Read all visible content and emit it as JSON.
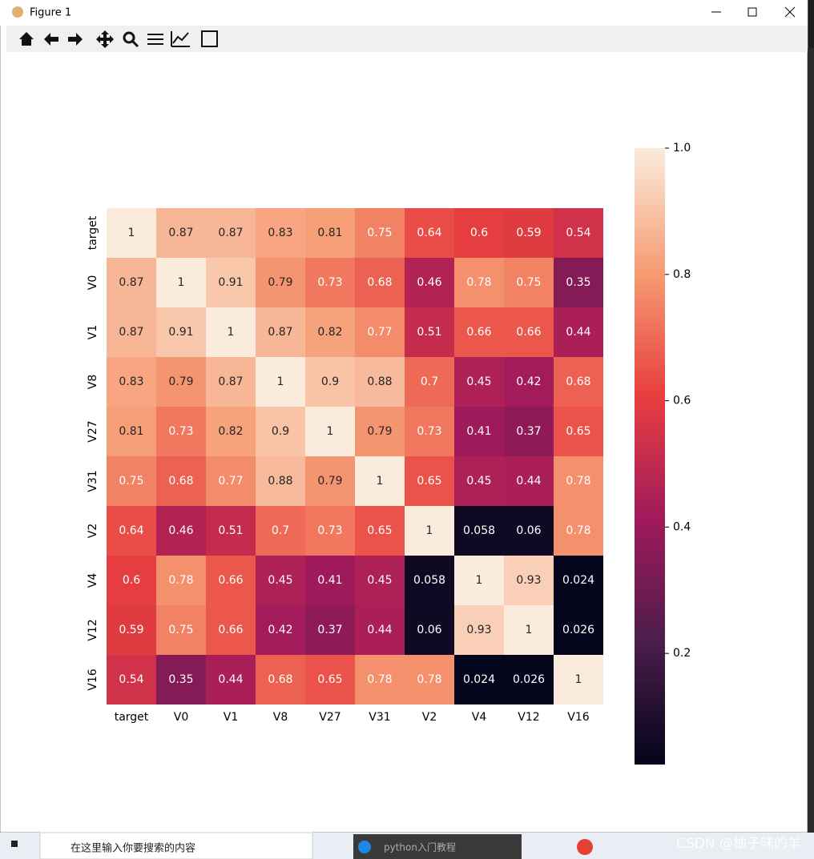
{
  "window": {
    "title": "Figure 1"
  },
  "chart_data": {
    "type": "heatmap",
    "x_categories": [
      "target",
      "V0",
      "V1",
      "V8",
      "V27",
      "V31",
      "V2",
      "V4",
      "V12",
      "V16"
    ],
    "y_categories": [
      "target",
      "V0",
      "V1",
      "V8",
      "V27",
      "V31",
      "V2",
      "V4",
      "V12",
      "V16"
    ],
    "values": [
      [
        1,
        0.87,
        0.87,
        0.83,
        0.81,
        0.75,
        0.64,
        0.6,
        0.59,
        0.54
      ],
      [
        0.87,
        1,
        0.91,
        0.79,
        0.73,
        0.68,
        0.46,
        0.78,
        0.75,
        0.35
      ],
      [
        0.87,
        0.91,
        1,
        0.87,
        0.82,
        0.77,
        0.51,
        0.66,
        0.66,
        0.44
      ],
      [
        0.83,
        0.79,
        0.87,
        1,
        0.9,
        0.88,
        0.7,
        0.45,
        0.42,
        0.68
      ],
      [
        0.81,
        0.73,
        0.82,
        0.9,
        1,
        0.79,
        0.73,
        0.41,
        0.37,
        0.65
      ],
      [
        0.75,
        0.68,
        0.77,
        0.88,
        0.79,
        1,
        0.65,
        0.45,
        0.44,
        0.78
      ],
      [
        0.64,
        0.46,
        0.51,
        0.7,
        0.73,
        0.65,
        1,
        0.058,
        0.06,
        0.78
      ],
      [
        0.6,
        0.78,
        0.66,
        0.45,
        0.41,
        0.45,
        0.058,
        1,
        0.93,
        0.024
      ],
      [
        0.59,
        0.75,
        0.66,
        0.42,
        0.37,
        0.44,
        0.06,
        0.93,
        1,
        0.026
      ],
      [
        0.54,
        0.35,
        0.44,
        0.68,
        0.65,
        0.78,
        0.78,
        0.024,
        0.026,
        1
      ]
    ],
    "colorscale": [
      "#03051a",
      "#4c1d4b",
      "#a11a5b",
      "#e83f3f",
      "#f69c73",
      "#faebdd"
    ],
    "zlim": [
      0.024,
      1
    ],
    "zticks": [
      0.2,
      0.4,
      0.6,
      0.8,
      {
        "value": 1,
        "label": "1.0"
      }
    ]
  },
  "taskbar": {
    "search_placeholder": "在这里输入你要搜索的内容",
    "app_label": "python入门教程"
  },
  "watermark": "CSDN @柚子味的羊"
}
